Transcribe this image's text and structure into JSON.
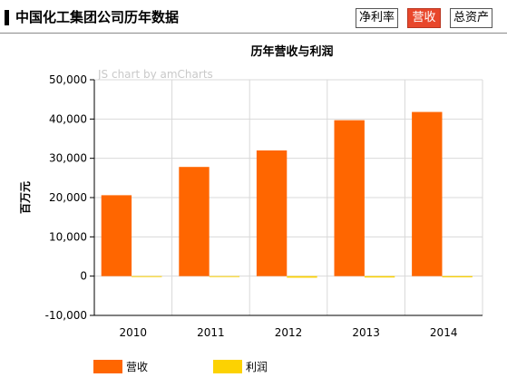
{
  "header": {
    "title": "中国化工集团公司历年数据",
    "tabs": [
      {
        "label": "净利率",
        "active": false
      },
      {
        "label": "营收",
        "active": true
      },
      {
        "label": "总资产",
        "active": false
      }
    ]
  },
  "chart_data": {
    "type": "bar",
    "title": "历年营收与利润",
    "watermark": "JS chart by amCharts",
    "xlabel": "",
    "ylabel": "百万元",
    "categories": [
      "2010",
      "2011",
      "2012",
      "2013",
      "2014"
    ],
    "ylim": [
      -10000,
      50000
    ],
    "yticks": [
      "-10,000",
      "0",
      "10,000",
      "20,000",
      "30,000",
      "40,000",
      "50,000"
    ],
    "grid": true,
    "legend_position": "bottom-left",
    "series": [
      {
        "name": "营收",
        "color": "#ff6600",
        "values": [
          20600,
          27800,
          32000,
          39700,
          41800
        ]
      },
      {
        "name": "利润",
        "color": "#fcd202",
        "values": [
          -100,
          -200,
          -400,
          -350,
          -300
        ]
      }
    ]
  }
}
